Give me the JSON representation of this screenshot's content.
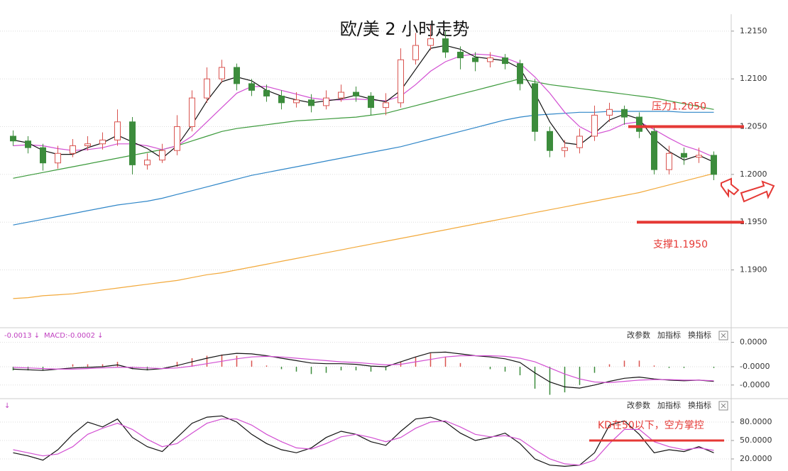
{
  "chart_data": [
    {
      "type": "candlestick",
      "title": "欧/美 2 小时走势",
      "open": [
        1.204,
        1.2035,
        1.2028,
        1.2012,
        1.2022,
        1.203,
        1.2032,
        1.2036,
        1.2055,
        1.201,
        1.2015,
        1.2025,
        1.205,
        1.208,
        1.21,
        1.2112,
        1.2095,
        1.2088,
        1.2082,
        1.2075,
        1.2078,
        1.2072,
        1.208,
        1.2086,
        1.2082,
        1.207,
        1.2075,
        1.212,
        1.2135,
        1.2142,
        1.2128,
        1.2122,
        1.2118,
        1.2122,
        1.2116,
        1.2095,
        1.2045,
        1.2025,
        1.2028,
        1.204,
        1.2062,
        1.2068,
        1.206,
        1.2045,
        1.2005,
        1.2022,
        1.2018,
        1.202
      ],
      "high": [
        1.2046,
        1.204,
        1.2032,
        1.203,
        1.2037,
        1.204,
        1.2044,
        1.2068,
        1.206,
        1.2022,
        1.2032,
        1.2062,
        1.2088,
        1.2112,
        1.212,
        1.2116,
        1.21,
        1.2094,
        1.2088,
        1.2086,
        1.2084,
        1.2088,
        1.2094,
        1.2092,
        1.2086,
        1.2085,
        1.2132,
        1.2148,
        1.2156,
        1.215,
        1.2134,
        1.2128,
        1.2128,
        1.2126,
        1.212,
        1.21,
        1.205,
        1.2036,
        1.2048,
        1.2072,
        1.2075,
        1.2072,
        1.2065,
        1.205,
        1.203,
        1.2028,
        1.2028,
        1.2024
      ],
      "low": [
        1.203,
        1.2022,
        1.2004,
        1.2006,
        1.2018,
        1.2025,
        1.2026,
        1.203,
        1.2,
        1.2005,
        1.2012,
        1.202,
        1.2045,
        1.2075,
        1.2096,
        1.2088,
        1.2082,
        1.2076,
        1.2068,
        1.207,
        1.2065,
        1.2068,
        1.2076,
        1.2076,
        1.2062,
        1.2062,
        1.207,
        1.2115,
        1.213,
        1.2122,
        1.211,
        1.2108,
        1.2112,
        1.211,
        1.2088,
        1.2035,
        1.2018,
        1.2018,
        1.2022,
        1.2035,
        1.2055,
        1.2052,
        1.2038,
        1.2,
        1.2,
        1.201,
        1.2012,
        1.1994
      ],
      "close": [
        1.2035,
        1.2028,
        1.2012,
        1.2022,
        1.203,
        1.2032,
        1.2036,
        1.2055,
        1.201,
        1.2015,
        1.2025,
        1.205,
        1.208,
        1.21,
        1.2112,
        1.2095,
        1.2088,
        1.2082,
        1.2075,
        1.2078,
        1.2072,
        1.208,
        1.2086,
        1.2082,
        1.207,
        1.2075,
        1.212,
        1.2135,
        1.2142,
        1.2128,
        1.2122,
        1.2118,
        1.2122,
        1.2116,
        1.2095,
        1.2045,
        1.2025,
        1.2028,
        1.204,
        1.2062,
        1.2068,
        1.206,
        1.2045,
        1.2005,
        1.2022,
        1.2018,
        1.202,
        1.2
      ],
      "up_color": "#d9534f",
      "down_color": "#3c8c3c",
      "series": [
        {
          "color": "#f2a93b",
          "values": [
            1.187,
            1.1871,
            1.1873,
            1.1874,
            1.1875,
            1.1877,
            1.1879,
            1.1881,
            1.1883,
            1.1885,
            1.1887,
            1.1889,
            1.1892,
            1.1895,
            1.1897,
            1.19,
            1.1903,
            1.1906,
            1.1909,
            1.1912,
            1.1915,
            1.1918,
            1.1921,
            1.1924,
            1.1927,
            1.193,
            1.1933,
            1.1936,
            1.1939,
            1.1942,
            1.1945,
            1.1948,
            1.1951,
            1.1954,
            1.1957,
            1.196,
            1.1963,
            1.1966,
            1.1969,
            1.1972,
            1.1975,
            1.1978,
            1.1981,
            1.1985,
            1.1989,
            1.1993,
            1.1997,
            1.2001
          ]
        },
        {
          "color": "#2f86c8",
          "values": [
            1.1947,
            1.195,
            1.1953,
            1.1956,
            1.1959,
            1.1962,
            1.1965,
            1.1968,
            1.197,
            1.1972,
            1.1975,
            1.1979,
            1.1983,
            1.1987,
            1.1991,
            1.1995,
            1.1999,
            1.2002,
            1.2005,
            1.2008,
            1.2011,
            1.2014,
            1.2017,
            1.202,
            1.2023,
            1.2026,
            1.2029,
            1.2033,
            1.2037,
            1.2041,
            1.2045,
            1.2049,
            1.2053,
            1.2057,
            1.206,
            1.2062,
            1.2063,
            1.2064,
            1.2065,
            1.2065,
            1.2066,
            1.2066,
            1.2066,
            1.2066,
            1.2066,
            1.2065,
            1.2065,
            1.2065
          ]
        },
        {
          "color": "#3c9a3c",
          "values": [
            1.1996,
            1.1999,
            1.2002,
            1.2005,
            1.2008,
            1.2011,
            1.2014,
            1.2017,
            1.202,
            1.2023,
            1.2026,
            1.203,
            1.2035,
            1.204,
            1.2045,
            1.2048,
            1.205,
            1.2052,
            1.2054,
            1.2056,
            1.2057,
            1.2058,
            1.2059,
            1.206,
            1.2062,
            1.2064,
            1.2068,
            1.2072,
            1.2076,
            1.208,
            1.2084,
            1.2088,
            1.2092,
            1.2096,
            1.21,
            1.2097,
            1.2094,
            1.2092,
            1.209,
            1.2088,
            1.2086,
            1.2084,
            1.2082,
            1.208,
            1.2077,
            1.2074,
            1.2071,
            1.2068
          ]
        },
        {
          "color": "#d24fd2",
          "values": [
            1.203,
            1.2031,
            1.203,
            1.2027,
            1.2025,
            1.2026,
            1.2028,
            1.2032,
            1.2032,
            1.203,
            1.2026,
            1.203,
            1.204,
            1.2055,
            1.207,
            1.2085,
            1.2092,
            1.2092,
            1.2088,
            1.2084,
            1.208,
            1.2078,
            1.2078,
            1.2079,
            1.2078,
            1.2077,
            1.2082,
            1.2094,
            1.2108,
            1.2118,
            1.2124,
            1.2126,
            1.2125,
            1.2122,
            1.2116,
            1.2102,
            1.2085,
            1.2065,
            1.205,
            1.2042,
            1.2046,
            1.2053,
            1.2055,
            1.2047,
            1.2038,
            1.203,
            1.2025,
            1.2018
          ]
        },
        {
          "color": "#111111",
          "values": [
            1.2036,
            1.2033,
            1.2025,
            1.2021,
            1.2021,
            1.2028,
            1.2033,
            1.2041,
            1.2034,
            1.2027,
            1.2017,
            1.203,
            1.2052,
            1.2077,
            1.2097,
            1.2102,
            1.2098,
            1.2088,
            1.2082,
            1.2078,
            1.2075,
            1.2077,
            1.2079,
            1.2083,
            1.2079,
            1.2076,
            1.2088,
            1.211,
            1.2132,
            1.2135,
            1.2131,
            1.2123,
            1.2121,
            1.2119,
            1.2111,
            1.2085,
            1.2055,
            1.2033,
            1.2031,
            1.2043,
            1.2057,
            1.2063,
            1.2058,
            1.2037,
            1.2024,
            1.2015,
            1.202,
            1.2013
          ]
        }
      ],
      "ylim": [
        1.1841,
        1.2164
      ],
      "yticks": [
        {
          "value": 1.215,
          "label": "1.2150"
        },
        {
          "value": 1.21,
          "label": "1.2100"
        },
        {
          "value": 1.205,
          "label": "1.2050"
        },
        {
          "value": 1.2,
          "label": "1.2000"
        },
        {
          "value": 1.195,
          "label": "1.1950"
        },
        {
          "value": 1.19,
          "label": "1.1900"
        }
      ],
      "grid": true,
      "annotations": [
        {
          "text": "压力1.2050",
          "value": 1.205,
          "color": "#e53935"
        },
        {
          "text": "支撑1.1950",
          "value": 1.195,
          "color": "#e53935"
        }
      ]
    },
    {
      "type": "macd",
      "header": [
        "-0.0013 ↓",
        "MACD:-0.0002 ↓"
      ],
      "toolbar": [
        "改参数",
        "加指标",
        "换指标"
      ],
      "series": [
        {
          "color": "#111111",
          "values": [
            -4e-06,
            -5e-06,
            -6e-06,
            -4e-06,
            -2e-06,
            -1e-06,
            0,
            3e-06,
            -3e-06,
            -5e-06,
            -3e-06,
            2e-06,
            8e-06,
            1.4e-05,
            1.9e-05,
            2.2e-05,
            2.1e-05,
            1.8e-05,
            1.4e-05,
            1e-05,
            6e-06,
            5e-06,
            5e-06,
            4e-06,
            1e-06,
            0,
            8e-06,
            1.6e-05,
            2.3e-05,
            2.4e-05,
            2.1e-05,
            1.8e-05,
            1.6e-05,
            1.3e-05,
            7e-06,
            -1e-05,
            -2.5e-05,
            -3.3e-05,
            -3.5e-05,
            -3e-05,
            -2.4e-05,
            -1.9e-05,
            -1.7e-05,
            -2e-05,
            -2.2e-05,
            -2.3e-05,
            -2.2e-05,
            -2.4e-05
          ]
        },
        {
          "color": "#d24fd2",
          "values": [
            -1e-06,
            -2e-06,
            -3e-06,
            -4e-06,
            -4e-06,
            -3e-06,
            -2e-06,
            -1e-06,
            -1e-06,
            -2e-06,
            -3e-06,
            -2e-06,
            1e-06,
            5e-06,
            9e-06,
            1.3e-05,
            1.6e-05,
            1.7e-05,
            1.6e-05,
            1.4e-05,
            1.2e-05,
            1e-05,
            8e-06,
            7e-06,
            5e-06,
            3e-06,
            4e-06,
            8e-06,
            1.2e-05,
            1.6e-05,
            1.8e-05,
            1.8e-05,
            1.8e-05,
            1.7e-05,
            1.4e-05,
            8e-06,
            -2e-06,
            -1.2e-05,
            -2e-05,
            -2.5e-05,
            -2.6e-05,
            -2.4e-05,
            -2.2e-05,
            -2.1e-05,
            -2.1e-05,
            -2.2e-05,
            -2.2e-05,
            -2.3e-05
          ]
        }
      ],
      "histogram": {
        "up_color": "#d9534f",
        "down_color": "#3c8c3c",
        "values": [
          -6e-06,
          -6e-06,
          -6e-06,
          0,
          4e-06,
          4e-06,
          4e-06,
          8e-06,
          -4e-06,
          -6e-06,
          0,
          8e-06,
          1.4e-05,
          1.8e-05,
          2e-05,
          1.8e-05,
          1e-05,
          2e-06,
          -4e-06,
          -8e-06,
          -1.2e-05,
          -1e-05,
          -6e-06,
          -6e-06,
          -8e-06,
          -6e-06,
          8e-06,
          1.6e-05,
          2.2e-05,
          1.6e-05,
          6e-06,
          0,
          -4e-06,
          -8e-06,
          -1.4e-05,
          -3.6e-05,
          -4.6e-05,
          -4.2e-05,
          -3e-05,
          -1e-05,
          4e-06,
          1e-05,
          1e-05,
          2e-06,
          -2e-06,
          -2e-06,
          0,
          -2e-06
        ]
      },
      "ylim": [
        -5e-05,
        5e-05
      ],
      "yticks": [
        {
          "value": 4e-05,
          "label": "0.0000"
        },
        {
          "value": 0,
          "label": "-0.0000"
        },
        {
          "value": -3e-05,
          "label": "-0.0000"
        }
      ]
    },
    {
      "type": "line",
      "header": [
        "↓"
      ],
      "toolbar": [
        "改参数",
        "加指标",
        "换指标"
      ],
      "series": [
        {
          "color": "#111111",
          "values": [
            30,
            25,
            18,
            35,
            60,
            80,
            72,
            85,
            55,
            40,
            32,
            55,
            78,
            88,
            90,
            80,
            60,
            45,
            35,
            30,
            38,
            55,
            65,
            60,
            48,
            42,
            65,
            85,
            88,
            80,
            62,
            50,
            55,
            62,
            45,
            20,
            10,
            8,
            10,
            30,
            75,
            82,
            60,
            30,
            35,
            32,
            40,
            30
          ]
        },
        {
          "color": "#d24fd2",
          "values": [
            35,
            30,
            25,
            28,
            40,
            60,
            70,
            78,
            68,
            52,
            40,
            45,
            62,
            78,
            85,
            85,
            75,
            60,
            48,
            38,
            36,
            45,
            56,
            60,
            55,
            48,
            55,
            70,
            80,
            82,
            72,
            60,
            56,
            58,
            52,
            35,
            20,
            12,
            10,
            18,
            45,
            68,
            68,
            48,
            40,
            35,
            38,
            34
          ]
        }
      ],
      "ylim": [
        5,
        95
      ],
      "yticks": [
        {
          "value": 80,
          "label": "80.0000"
        },
        {
          "value": 50,
          "label": "50.0000"
        },
        {
          "value": 20,
          "label": "20.0000"
        }
      ],
      "annotations": [
        {
          "text": "KD在50以下，空方掌控",
          "value": 50,
          "color": "#e53935"
        }
      ]
    }
  ]
}
